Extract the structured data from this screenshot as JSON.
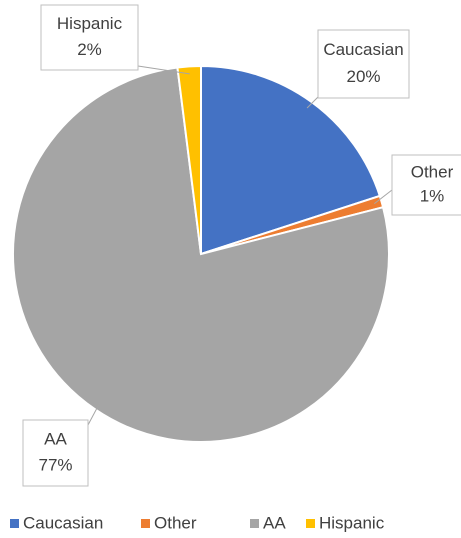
{
  "chart_data": {
    "type": "pie",
    "categories": [
      "Caucasian",
      "Other",
      "AA",
      "Hispanic"
    ],
    "values": [
      20,
      1,
      77,
      2
    ],
    "value_labels": [
      "20%",
      "1%",
      "77%",
      "2%"
    ],
    "colors": [
      "#4472c4",
      "#ed7d31",
      "#a5a5a5",
      "#ffc000"
    ],
    "legend": "bottom"
  }
}
